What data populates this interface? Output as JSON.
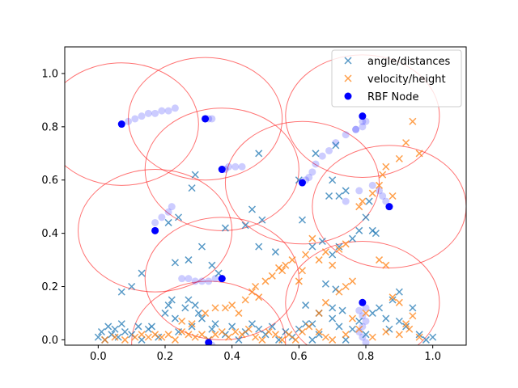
{
  "chart_data": {
    "type": "scatter",
    "xlim": [
      -0.1,
      1.1
    ],
    "ylim": [
      -0.02,
      1.1
    ],
    "xticks": [
      "0.0",
      "0.2",
      "0.4",
      "0.6",
      "0.8",
      "1.0"
    ],
    "yticks": [
      "0.0",
      "0.2",
      "0.4",
      "0.6",
      "0.8",
      "1.0"
    ],
    "grid": false,
    "legend_position": "top-right",
    "colors": {
      "angle": "#1f77b4",
      "velocity": "#ff7f0e",
      "node": "#0000ff",
      "circle": "#ff0000"
    },
    "series": [
      {
        "name": "angle/distances",
        "marker": "x",
        "points": [
          [
            0.0,
            0.01
          ],
          [
            0.01,
            0.03
          ],
          [
            0.02,
            0.0
          ],
          [
            0.03,
            0.05
          ],
          [
            0.04,
            0.02
          ],
          [
            0.05,
            0.04
          ],
          [
            0.06,
            0.01
          ],
          [
            0.07,
            0.06
          ],
          [
            0.08,
            0.03
          ],
          [
            0.1,
            0.02
          ],
          [
            0.12,
            0.05
          ],
          [
            0.13,
            0.0
          ],
          [
            0.15,
            0.04
          ],
          [
            0.16,
            0.05
          ],
          [
            0.18,
            0.01
          ],
          [
            0.2,
            0.1
          ],
          [
            0.21,
            0.13
          ],
          [
            0.22,
            0.15
          ],
          [
            0.23,
            0.08
          ],
          [
            0.24,
            0.03
          ],
          [
            0.26,
            0.12
          ],
          [
            0.27,
            0.15
          ],
          [
            0.28,
            0.05
          ],
          [
            0.29,
            0.13
          ],
          [
            0.3,
            0.1
          ],
          [
            0.31,
            0.08
          ],
          [
            0.33,
            0.0
          ],
          [
            0.34,
            0.04
          ],
          [
            0.35,
            0.06
          ],
          [
            0.38,
            0.02
          ],
          [
            0.4,
            0.05
          ],
          [
            0.42,
            0.0
          ],
          [
            0.44,
            0.03
          ],
          [
            0.46,
            0.06
          ],
          [
            0.48,
            0.04
          ],
          [
            0.5,
            0.02
          ],
          [
            0.52,
            0.05
          ],
          [
            0.54,
            0.0
          ],
          [
            0.56,
            0.03
          ],
          [
            0.58,
            0.01
          ],
          [
            0.6,
            0.04
          ],
          [
            0.62,
            0.06
          ],
          [
            0.64,
            0.0
          ],
          [
            0.66,
            0.02
          ],
          [
            0.7,
            0.08
          ],
          [
            0.72,
            0.05
          ],
          [
            0.74,
            0.0
          ],
          [
            0.76,
            0.04
          ],
          [
            0.78,
            0.07
          ],
          [
            0.8,
            0.02
          ],
          [
            0.82,
            0.1
          ],
          [
            0.84,
            0.12
          ],
          [
            0.86,
            0.08
          ],
          [
            0.88,
            0.15
          ],
          [
            0.9,
            0.18
          ],
          [
            0.92,
            0.05
          ],
          [
            0.94,
            0.12
          ],
          [
            0.96,
            0.02
          ],
          [
            0.98,
            0.0
          ],
          [
            1.0,
            0.01
          ],
          [
            0.07,
            0.18
          ],
          [
            0.1,
            0.2
          ],
          [
            0.13,
            0.25
          ],
          [
            0.23,
            0.29
          ],
          [
            0.27,
            0.3
          ],
          [
            0.31,
            0.35
          ],
          [
            0.34,
            0.28
          ],
          [
            0.36,
            0.25
          ],
          [
            0.28,
            0.57
          ],
          [
            0.29,
            0.62
          ],
          [
            0.24,
            0.46
          ],
          [
            0.21,
            0.44
          ],
          [
            0.38,
            0.42
          ],
          [
            0.44,
            0.43
          ],
          [
            0.46,
            0.49
          ],
          [
            0.49,
            0.45
          ],
          [
            0.48,
            0.35
          ],
          [
            0.48,
            0.7
          ],
          [
            0.53,
            0.33
          ],
          [
            0.6,
            0.6
          ],
          [
            0.61,
            0.45
          ],
          [
            0.64,
            0.35
          ],
          [
            0.65,
            0.7
          ],
          [
            0.67,
            0.37
          ],
          [
            0.69,
            0.54
          ],
          [
            0.7,
            0.6
          ],
          [
            0.71,
            0.73
          ],
          [
            0.72,
            0.54
          ],
          [
            0.74,
            0.56
          ],
          [
            0.72,
            0.35
          ],
          [
            0.76,
            0.38
          ],
          [
            0.78,
            0.41
          ],
          [
            0.8,
            0.46
          ],
          [
            0.82,
            0.41
          ],
          [
            0.81,
            0.52
          ],
          [
            0.83,
            0.4
          ],
          [
            0.7,
            0.32
          ],
          [
            0.68,
            0.21
          ],
          [
            0.71,
            0.19
          ],
          [
            0.62,
            0.13
          ],
          [
            0.64,
            0.06
          ],
          [
            0.66,
            0.1
          ],
          [
            0.7,
            0.12
          ],
          [
            0.73,
            0.11
          ],
          [
            0.87,
            0.04
          ],
          [
            0.9,
            0.07
          ]
        ]
      },
      {
        "name": "velocity/height",
        "marker": "x",
        "points": [
          [
            0.02,
            0.0
          ],
          [
            0.05,
            0.01
          ],
          [
            0.08,
            0.0
          ],
          [
            0.11,
            0.01
          ],
          [
            0.13,
            0.02
          ],
          [
            0.15,
            0.01
          ],
          [
            0.17,
            0.02
          ],
          [
            0.19,
            0.01
          ],
          [
            0.21,
            0.02
          ],
          [
            0.23,
            0.0
          ],
          [
            0.25,
            0.03
          ],
          [
            0.27,
            0.02
          ],
          [
            0.29,
            0.01
          ],
          [
            0.31,
            0.02
          ],
          [
            0.33,
            0.0
          ],
          [
            0.35,
            0.02
          ],
          [
            0.37,
            0.03
          ],
          [
            0.39,
            0.01
          ],
          [
            0.41,
            0.03
          ],
          [
            0.43,
            0.02
          ],
          [
            0.45,
            0.04
          ],
          [
            0.47,
            0.01
          ],
          [
            0.49,
            0.0
          ],
          [
            0.51,
            0.03
          ],
          [
            0.53,
            0.02
          ],
          [
            0.55,
            0.0
          ],
          [
            0.57,
            0.02
          ],
          [
            0.59,
            0.0
          ],
          [
            0.61,
            0.03
          ],
          [
            0.63,
            0.05
          ],
          [
            0.66,
            0.03
          ],
          [
            0.68,
            0.01
          ],
          [
            0.7,
            0.0
          ],
          [
            0.74,
            0.02
          ],
          [
            0.78,
            0.04
          ],
          [
            0.82,
            0.01
          ],
          [
            0.86,
            0.03
          ],
          [
            0.9,
            0.02
          ],
          [
            0.93,
            0.04
          ],
          [
            0.96,
            0.01
          ],
          [
            0.25,
            0.07
          ],
          [
            0.28,
            0.06
          ],
          [
            0.32,
            0.1
          ],
          [
            0.35,
            0.12
          ],
          [
            0.38,
            0.12
          ],
          [
            0.4,
            0.13
          ],
          [
            0.42,
            0.1
          ],
          [
            0.44,
            0.15
          ],
          [
            0.46,
            0.18
          ],
          [
            0.47,
            0.2
          ],
          [
            0.48,
            0.16
          ],
          [
            0.5,
            0.22
          ],
          [
            0.52,
            0.24
          ],
          [
            0.54,
            0.27
          ],
          [
            0.55,
            0.26
          ],
          [
            0.56,
            0.28
          ],
          [
            0.58,
            0.3
          ],
          [
            0.6,
            0.22
          ],
          [
            0.61,
            0.26
          ],
          [
            0.62,
            0.32
          ],
          [
            0.64,
            0.38
          ],
          [
            0.66,
            0.3
          ],
          [
            0.68,
            0.33
          ],
          [
            0.7,
            0.28
          ],
          [
            0.72,
            0.34
          ],
          [
            0.74,
            0.36
          ],
          [
            0.66,
            0.1
          ],
          [
            0.68,
            0.14
          ],
          [
            0.72,
            0.18
          ],
          [
            0.74,
            0.2
          ],
          [
            0.76,
            0.22
          ],
          [
            0.78,
            0.5
          ],
          [
            0.79,
            0.52
          ],
          [
            0.82,
            0.55
          ],
          [
            0.84,
            0.58
          ],
          [
            0.85,
            0.62
          ],
          [
            0.86,
            0.65
          ],
          [
            0.88,
            0.54
          ],
          [
            0.9,
            0.68
          ],
          [
            0.92,
            0.74
          ],
          [
            0.94,
            0.82
          ],
          [
            0.96,
            0.7
          ],
          [
            0.84,
            0.3
          ],
          [
            0.86,
            0.28
          ],
          [
            0.88,
            0.16
          ],
          [
            0.9,
            0.14
          ],
          [
            0.8,
            0.1
          ],
          [
            0.76,
            0.08
          ],
          [
            0.92,
            0.06
          ],
          [
            0.94,
            0.09
          ]
        ]
      },
      {
        "name": "RBF Node",
        "marker": "o",
        "points": [
          [
            0.07,
            0.81
          ],
          [
            0.32,
            0.83
          ],
          [
            0.37,
            0.64
          ],
          [
            0.61,
            0.59
          ],
          [
            0.79,
            0.84
          ],
          [
            0.87,
            0.5
          ],
          [
            0.17,
            0.41
          ],
          [
            0.37,
            0.23
          ],
          [
            0.33,
            -0.01
          ],
          [
            0.79,
            0.14
          ]
        ]
      }
    ],
    "trails": [
      [
        [
          0.07,
          0.81
        ],
        [
          0.09,
          0.82
        ],
        [
          0.11,
          0.83
        ],
        [
          0.13,
          0.84
        ],
        [
          0.15,
          0.85
        ],
        [
          0.17,
          0.85
        ],
        [
          0.19,
          0.86
        ],
        [
          0.21,
          0.86
        ],
        [
          0.23,
          0.87
        ]
      ],
      [
        [
          0.32,
          0.83
        ],
        [
          0.32,
          0.83
        ],
        [
          0.33,
          0.83
        ],
        [
          0.34,
          0.83
        ]
      ],
      [
        [
          0.37,
          0.64
        ],
        [
          0.38,
          0.64
        ],
        [
          0.39,
          0.65
        ],
        [
          0.41,
          0.65
        ],
        [
          0.43,
          0.65
        ]
      ],
      [
        [
          0.61,
          0.59
        ],
        [
          0.62,
          0.6
        ],
        [
          0.63,
          0.61
        ],
        [
          0.64,
          0.63
        ],
        [
          0.65,
          0.66
        ],
        [
          0.67,
          0.69
        ],
        [
          0.69,
          0.71
        ],
        [
          0.71,
          0.74
        ],
        [
          0.74,
          0.77
        ],
        [
          0.77,
          0.79
        ],
        [
          0.79,
          0.82
        ]
      ],
      [
        [
          0.79,
          0.84
        ],
        [
          0.8,
          0.82
        ],
        [
          0.79,
          0.8
        ],
        [
          0.77,
          0.79
        ]
      ],
      [
        [
          0.87,
          0.5
        ],
        [
          0.86,
          0.52
        ],
        [
          0.85,
          0.54
        ],
        [
          0.84,
          0.56
        ],
        [
          0.82,
          0.58
        ],
        [
          0.78,
          0.56
        ],
        [
          0.74,
          0.52
        ]
      ],
      [
        [
          0.17,
          0.41
        ],
        [
          0.17,
          0.44
        ],
        [
          0.19,
          0.46
        ],
        [
          0.21,
          0.48
        ],
        [
          0.22,
          0.5
        ]
      ],
      [
        [
          0.37,
          0.23
        ],
        [
          0.35,
          0.23
        ],
        [
          0.33,
          0.22
        ],
        [
          0.31,
          0.22
        ],
        [
          0.29,
          0.22
        ],
        [
          0.27,
          0.23
        ],
        [
          0.25,
          0.23
        ]
      ],
      [
        [
          0.33,
          -0.01
        ],
        [
          0.34,
          -0.02
        ]
      ],
      [
        [
          0.79,
          0.14
        ],
        [
          0.8,
          0.12
        ],
        [
          0.78,
          0.11
        ],
        [
          0.79,
          0.09
        ],
        [
          0.8,
          0.07
        ],
        [
          0.79,
          0.05
        ],
        [
          0.78,
          0.03
        ],
        [
          0.79,
          0.01
        ],
        [
          0.8,
          -0.01
        ]
      ]
    ],
    "rbf_circle_radius": 0.23
  }
}
